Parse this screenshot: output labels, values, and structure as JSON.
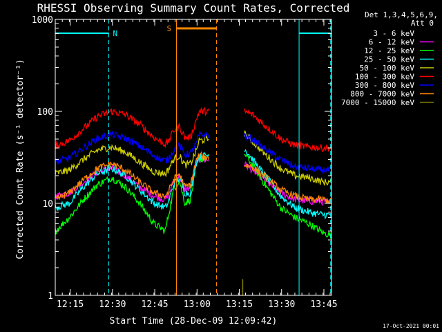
{
  "chart_data": {
    "type": "line",
    "title": "RHESSI Observing Summary Count Rates, Corrected",
    "xlabel": "Start Time (28-Dec-09 12:09:42)",
    "ylabel": "Corrected Count Rate (s⁻¹ detector⁻¹)",
    "y_scale": "log",
    "ylim": [
      1,
      1000
    ],
    "x_range_minutes": [
      0,
      98
    ],
    "x_ticks": [
      {
        "label": "12:15",
        "t": 5.3
      },
      {
        "label": "12:30",
        "t": 20.3
      },
      {
        "label": "12:45",
        "t": 35.3
      },
      {
        "label": "13:00",
        "t": 50.3
      },
      {
        "label": "13:15",
        "t": 65.3
      },
      {
        "label": "13:30",
        "t": 80.3
      },
      {
        "label": "13:45",
        "t": 95.3
      }
    ],
    "y_ticks": [
      "1",
      "10",
      "100",
      "1000"
    ],
    "legend_header": [
      "Det 1,3,4,5,6,9,",
      "Att 0"
    ],
    "legend_position": "right",
    "footer": "17-Oct-2021 00:01",
    "data_gap_minutes": [
      54.5,
      67.0
    ],
    "night_markers": [
      {
        "label": "N",
        "bar": [
          0,
          19.0
        ]
      },
      {
        "label": "",
        "bar": [
          86.5,
          97.7
        ]
      }
    ],
    "saa_marker": {
      "label": "S",
      "bar": [
        43.0,
        57.2
      ]
    },
    "series": [
      {
        "name": "3 - 6 keV",
        "color": "#000000",
        "x": [
          0,
          5,
          10,
          15,
          20,
          25,
          30,
          35,
          39,
          40,
          42,
          44,
          46,
          48,
          50,
          51,
          67,
          70,
          75,
          80,
          85,
          90,
          95,
          97.7
        ],
        "y": [
          10,
          11,
          15,
          19,
          20,
          17,
          13,
          10,
          8,
          9,
          13,
          15,
          11,
          12,
          28,
          33,
          20,
          18,
          14,
          11,
          10,
          9.5,
          9.5,
          9
        ]
      },
      {
        "name": "6 - 12 keV",
        "color": "#ff00ff",
        "x": [
          0,
          5,
          10,
          15,
          20,
          25,
          30,
          35,
          39,
          40,
          42,
          44,
          46,
          48,
          50,
          51,
          67,
          70,
          75,
          80,
          85,
          90,
          95,
          97.7
        ],
        "y": [
          12,
          13,
          17,
          22,
          24,
          20,
          15,
          12,
          11,
          12,
          17,
          20,
          14,
          15,
          28,
          30,
          27,
          23,
          17,
          13,
          11,
          10.5,
          10.5,
          10
        ]
      },
      {
        "name": "12 - 25 keV",
        "color": "#00ff00",
        "x": [
          0,
          5,
          10,
          15,
          20,
          25,
          30,
          35,
          39,
          40,
          42,
          44,
          46,
          48,
          50,
          51,
          67,
          70,
          75,
          80,
          85,
          90,
          95,
          97.7
        ],
        "y": [
          5,
          7,
          11,
          16,
          19,
          15,
          10,
          6,
          5,
          7,
          14,
          18,
          10,
          11,
          25,
          30,
          35,
          26,
          15,
          9,
          7,
          6,
          4.8,
          4.5
        ]
      },
      {
        "name": "25 - 50 keV",
        "color": "#00ffff",
        "x": [
          0,
          5,
          10,
          15,
          20,
          25,
          30,
          35,
          39,
          40,
          42,
          44,
          46,
          48,
          50,
          51,
          67,
          70,
          75,
          80,
          85,
          90,
          95,
          97.7
        ],
        "y": [
          9,
          10,
          15,
          21,
          24,
          20,
          14,
          10,
          9,
          10,
          16,
          19,
          13,
          13,
          28,
          32,
          40,
          30,
          19,
          12,
          9,
          8,
          7.5,
          7.5
        ]
      },
      {
        "name": "50 - 100 keV",
        "color": "#cccc00",
        "x": [
          0,
          5,
          10,
          15,
          20,
          25,
          30,
          35,
          39,
          40,
          42,
          44,
          46,
          48,
          50,
          51,
          67,
          70,
          75,
          80,
          85,
          90,
          95,
          97.7
        ],
        "y": [
          21,
          23,
          30,
          38,
          41,
          36,
          28,
          22,
          21,
          23,
          30,
          33,
          26,
          27,
          37,
          48,
          58,
          47,
          33,
          24,
          20,
          19,
          17,
          17
        ]
      },
      {
        "name": "100 - 300 keV",
        "color": "#ff0000",
        "x": [
          0,
          5,
          10,
          15,
          20,
          25,
          30,
          35,
          39,
          40,
          42,
          44,
          46,
          48,
          50,
          51,
          67,
          70,
          75,
          80,
          85,
          90,
          95,
          97.7
        ],
        "y": [
          42,
          48,
          65,
          88,
          100,
          92,
          72,
          52,
          44,
          46,
          62,
          68,
          52,
          52,
          80,
          100,
          100,
          92,
          68,
          50,
          43,
          41,
          40,
          40
        ]
      },
      {
        "name": "300 - 800 keV",
        "color": "#0000ff",
        "x": [
          0,
          5,
          10,
          15,
          20,
          25,
          30,
          35,
          39,
          40,
          42,
          44,
          46,
          48,
          50,
          51,
          67,
          70,
          75,
          80,
          85,
          90,
          95,
          97.7
        ],
        "y": [
          28,
          31,
          40,
          51,
          56,
          51,
          42,
          33,
          29,
          30,
          38,
          43,
          34,
          35,
          44,
          55,
          55,
          49,
          38,
          30,
          25,
          24,
          23,
          23
        ]
      },
      {
        "name": "800 - 7000 keV",
        "color": "#ff8800",
        "x": [
          0,
          5,
          10,
          15,
          20,
          25,
          30,
          35,
          39,
          40,
          42,
          44,
          46,
          48,
          50,
          51,
          67,
          70,
          75,
          80,
          85,
          90,
          95,
          97.7
        ],
        "y": [
          11,
          13,
          18,
          24,
          27,
          23,
          17,
          13,
          12,
          13,
          18,
          21,
          15,
          16,
          29,
          33,
          26,
          25,
          19,
          14,
          12,
          11,
          11,
          10.5
        ]
      },
      {
        "name": "7000 - 15000 keV",
        "color": "#808000",
        "x": [
          66.5,
          67.2
        ],
        "y": [
          1.5,
          1.5
        ]
      }
    ]
  }
}
